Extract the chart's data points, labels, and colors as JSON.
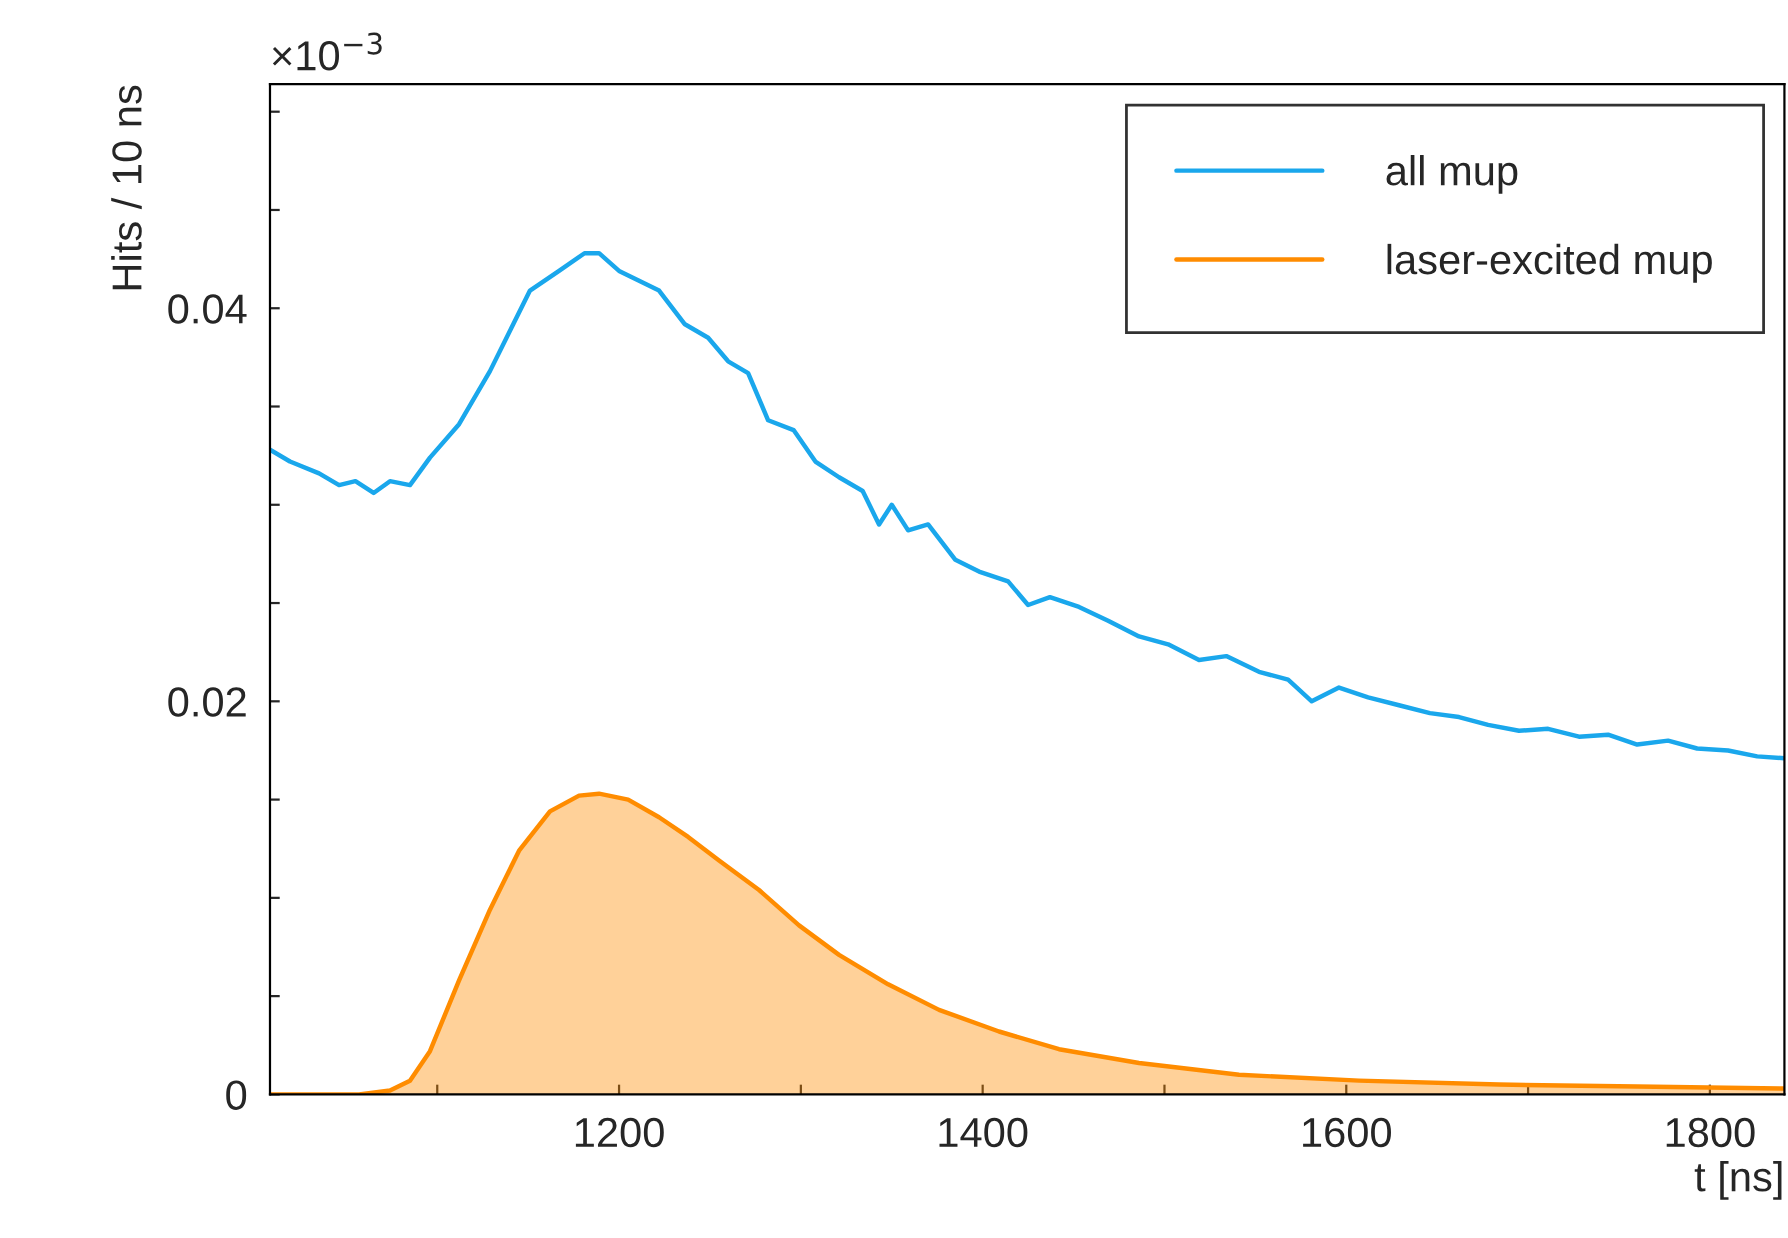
{
  "chart_data": {
    "type": "line",
    "xlabel": "t [ns]",
    "ylabel": "Hits / 10 ns",
    "annotations": [
      "×10$^{−3}$"
    ],
    "xlim": [
      1008,
      1841
    ],
    "xticks": [
      {
        "value": 1100,
        "label": null
      },
      1200,
      {
        "value": 1300,
        "label": null
      },
      1400,
      {
        "value": 1500,
        "label": null
      },
      1600,
      {
        "value": 1700,
        "label": null
      },
      1800
    ],
    "ylim": [
      0,
      0.0514
    ],
    "yticks": [
      0,
      {
        "value": 0.005,
        "label": null
      },
      {
        "value": 0.01,
        "label": null
      },
      {
        "value": 0.015,
        "label": null
      },
      0.02,
      {
        "value": 0.025,
        "label": null
      },
      {
        "value": 0.03,
        "label": null
      },
      {
        "value": 0.035,
        "label": null
      },
      0.04,
      {
        "value": 0.045,
        "label": null
      },
      {
        "value": 0.05,
        "label": null
      }
    ],
    "legend": "top right",
    "grid": false,
    "series": [
      {
        "name": "all mup",
        "color": "#1aa7ec",
        "x": [
          1008,
          1019,
          1035,
          1046,
          1055,
          1065,
          1074,
          1085,
          1096,
          1112,
          1129,
          1151,
          1167,
          1181,
          1189,
          1200,
          1211,
          1222,
          1236,
          1249,
          1260,
          1271,
          1282,
          1296,
          1308,
          1321,
          1334,
          1343,
          1350,
          1359,
          1370,
          1385,
          1398,
          1414,
          1425,
          1437,
          1453,
          1469,
          1486,
          1502,
          1519,
          1534,
          1552,
          1568,
          1581,
          1596,
          1612,
          1629,
          1646,
          1662,
          1678,
          1695,
          1711,
          1728,
          1744,
          1760,
          1777,
          1793,
          1810,
          1826,
          1841
        ],
        "values": [
          0.0328,
          0.0322,
          0.0316,
          0.031,
          0.0312,
          0.0306,
          0.0312,
          0.031,
          0.0324,
          0.0341,
          0.0368,
          0.0409,
          0.0419,
          0.0428,
          0.0428,
          0.0419,
          0.0414,
          0.0409,
          0.0392,
          0.0385,
          0.0373,
          0.0367,
          0.0343,
          0.0338,
          0.0322,
          0.0314,
          0.0307,
          0.029,
          0.03,
          0.0287,
          0.029,
          0.0272,
          0.0266,
          0.0261,
          0.0249,
          0.0253,
          0.0248,
          0.0241,
          0.0233,
          0.0229,
          0.0221,
          0.0223,
          0.0215,
          0.0211,
          0.02,
          0.0207,
          0.0202,
          0.0198,
          0.0194,
          0.0192,
          0.0188,
          0.0185,
          0.0186,
          0.0182,
          0.0183,
          0.0178,
          0.018,
          0.0176,
          0.0175,
          0.0172,
          0.0171
        ]
      },
      {
        "name": "laser-excited mup",
        "type": "area",
        "color": "#ff8c00",
        "x": [
          1008,
          1057,
          1074,
          1085,
          1096,
          1112,
          1129,
          1145,
          1162,
          1178,
          1189,
          1205,
          1222,
          1238,
          1255,
          1277,
          1299,
          1321,
          1348,
          1376,
          1409,
          1442,
          1486,
          1541,
          1607,
          1684,
          1760,
          1841
        ],
        "values": [
          0.0,
          0.0,
          0.0002,
          0.0007,
          0.0022,
          0.0058,
          0.0094,
          0.0124,
          0.0144,
          0.0152,
          0.0153,
          0.015,
          0.0141,
          0.0131,
          0.0119,
          0.0104,
          0.0086,
          0.0071,
          0.0056,
          0.0043,
          0.0032,
          0.0023,
          0.0016,
          0.001,
          0.0007,
          0.0005,
          0.0004,
          0.0003
        ]
      }
    ]
  }
}
